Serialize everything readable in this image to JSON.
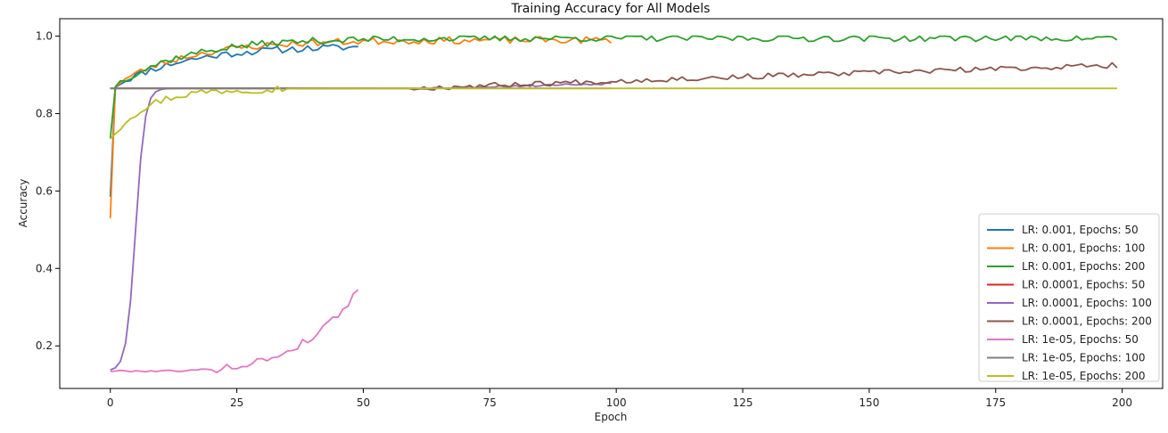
{
  "chart_data": {
    "type": "line",
    "title": "Training Accuracy for All Models",
    "xlabel": "Epoch",
    "ylabel": "Accuracy",
    "xlim": [
      -10,
      208
    ],
    "ylim": [
      0.09,
      1.045
    ],
    "xticks": [
      0,
      25,
      50,
      75,
      100,
      125,
      150,
      175,
      200
    ],
    "yticks": [
      0.2,
      0.4,
      0.6,
      0.8,
      1.0
    ],
    "ytick_labels": [
      "0.2",
      "0.4",
      "0.6",
      "0.8",
      "1.0"
    ],
    "grid": false,
    "legend_position": "lower-right",
    "series": [
      {
        "name": "LR: 0.001, Epochs: 50",
        "color": "#1f77b4",
        "epochs": 50,
        "kind": "high",
        "seed": 11,
        "final": 0.975,
        "start": 0.585
      },
      {
        "name": "LR: 0.001, Epochs: 100",
        "color": "#ff7f0e",
        "epochs": 100,
        "kind": "high",
        "seed": 23,
        "final": 0.99,
        "start": 0.53
      },
      {
        "name": "LR: 0.001, Epochs: 200",
        "color": "#2ca02c",
        "epochs": 200,
        "kind": "high",
        "seed": 37,
        "final": 0.995,
        "start": 0.735
      },
      {
        "name": "LR: 0.0001, Epochs: 50",
        "color": "#d62728",
        "epochs": 50,
        "kind": "flat",
        "seed": 41,
        "value": 0.865
      },
      {
        "name": "LR: 0.0001, Epochs: 100",
        "color": "#9467bd",
        "epochs": 100,
        "kind": "sigmoid",
        "seed": 53,
        "start": 0.135,
        "final": 0.878
      },
      {
        "name": "LR: 0.0001, Epochs: 200",
        "color": "#8c564b",
        "epochs": 200,
        "kind": "slowrise",
        "seed": 67,
        "start": 0.865,
        "final": 0.925
      },
      {
        "name": "LR: 1e-05, Epochs: 50",
        "color": "#e377c2",
        "epochs": 50,
        "kind": "late",
        "seed": 79,
        "start": 0.135,
        "final": 0.345
      },
      {
        "name": "LR: 1e-05, Epochs: 100",
        "color": "#7f7f7f",
        "epochs": 100,
        "kind": "flat",
        "seed": 83,
        "value": 0.865
      },
      {
        "name": "LR: 1e-05, Epochs: 200",
        "color": "#bcbd22",
        "epochs": 200,
        "kind": "warm",
        "seed": 97,
        "start": 0.735,
        "final": 0.865
      }
    ]
  }
}
